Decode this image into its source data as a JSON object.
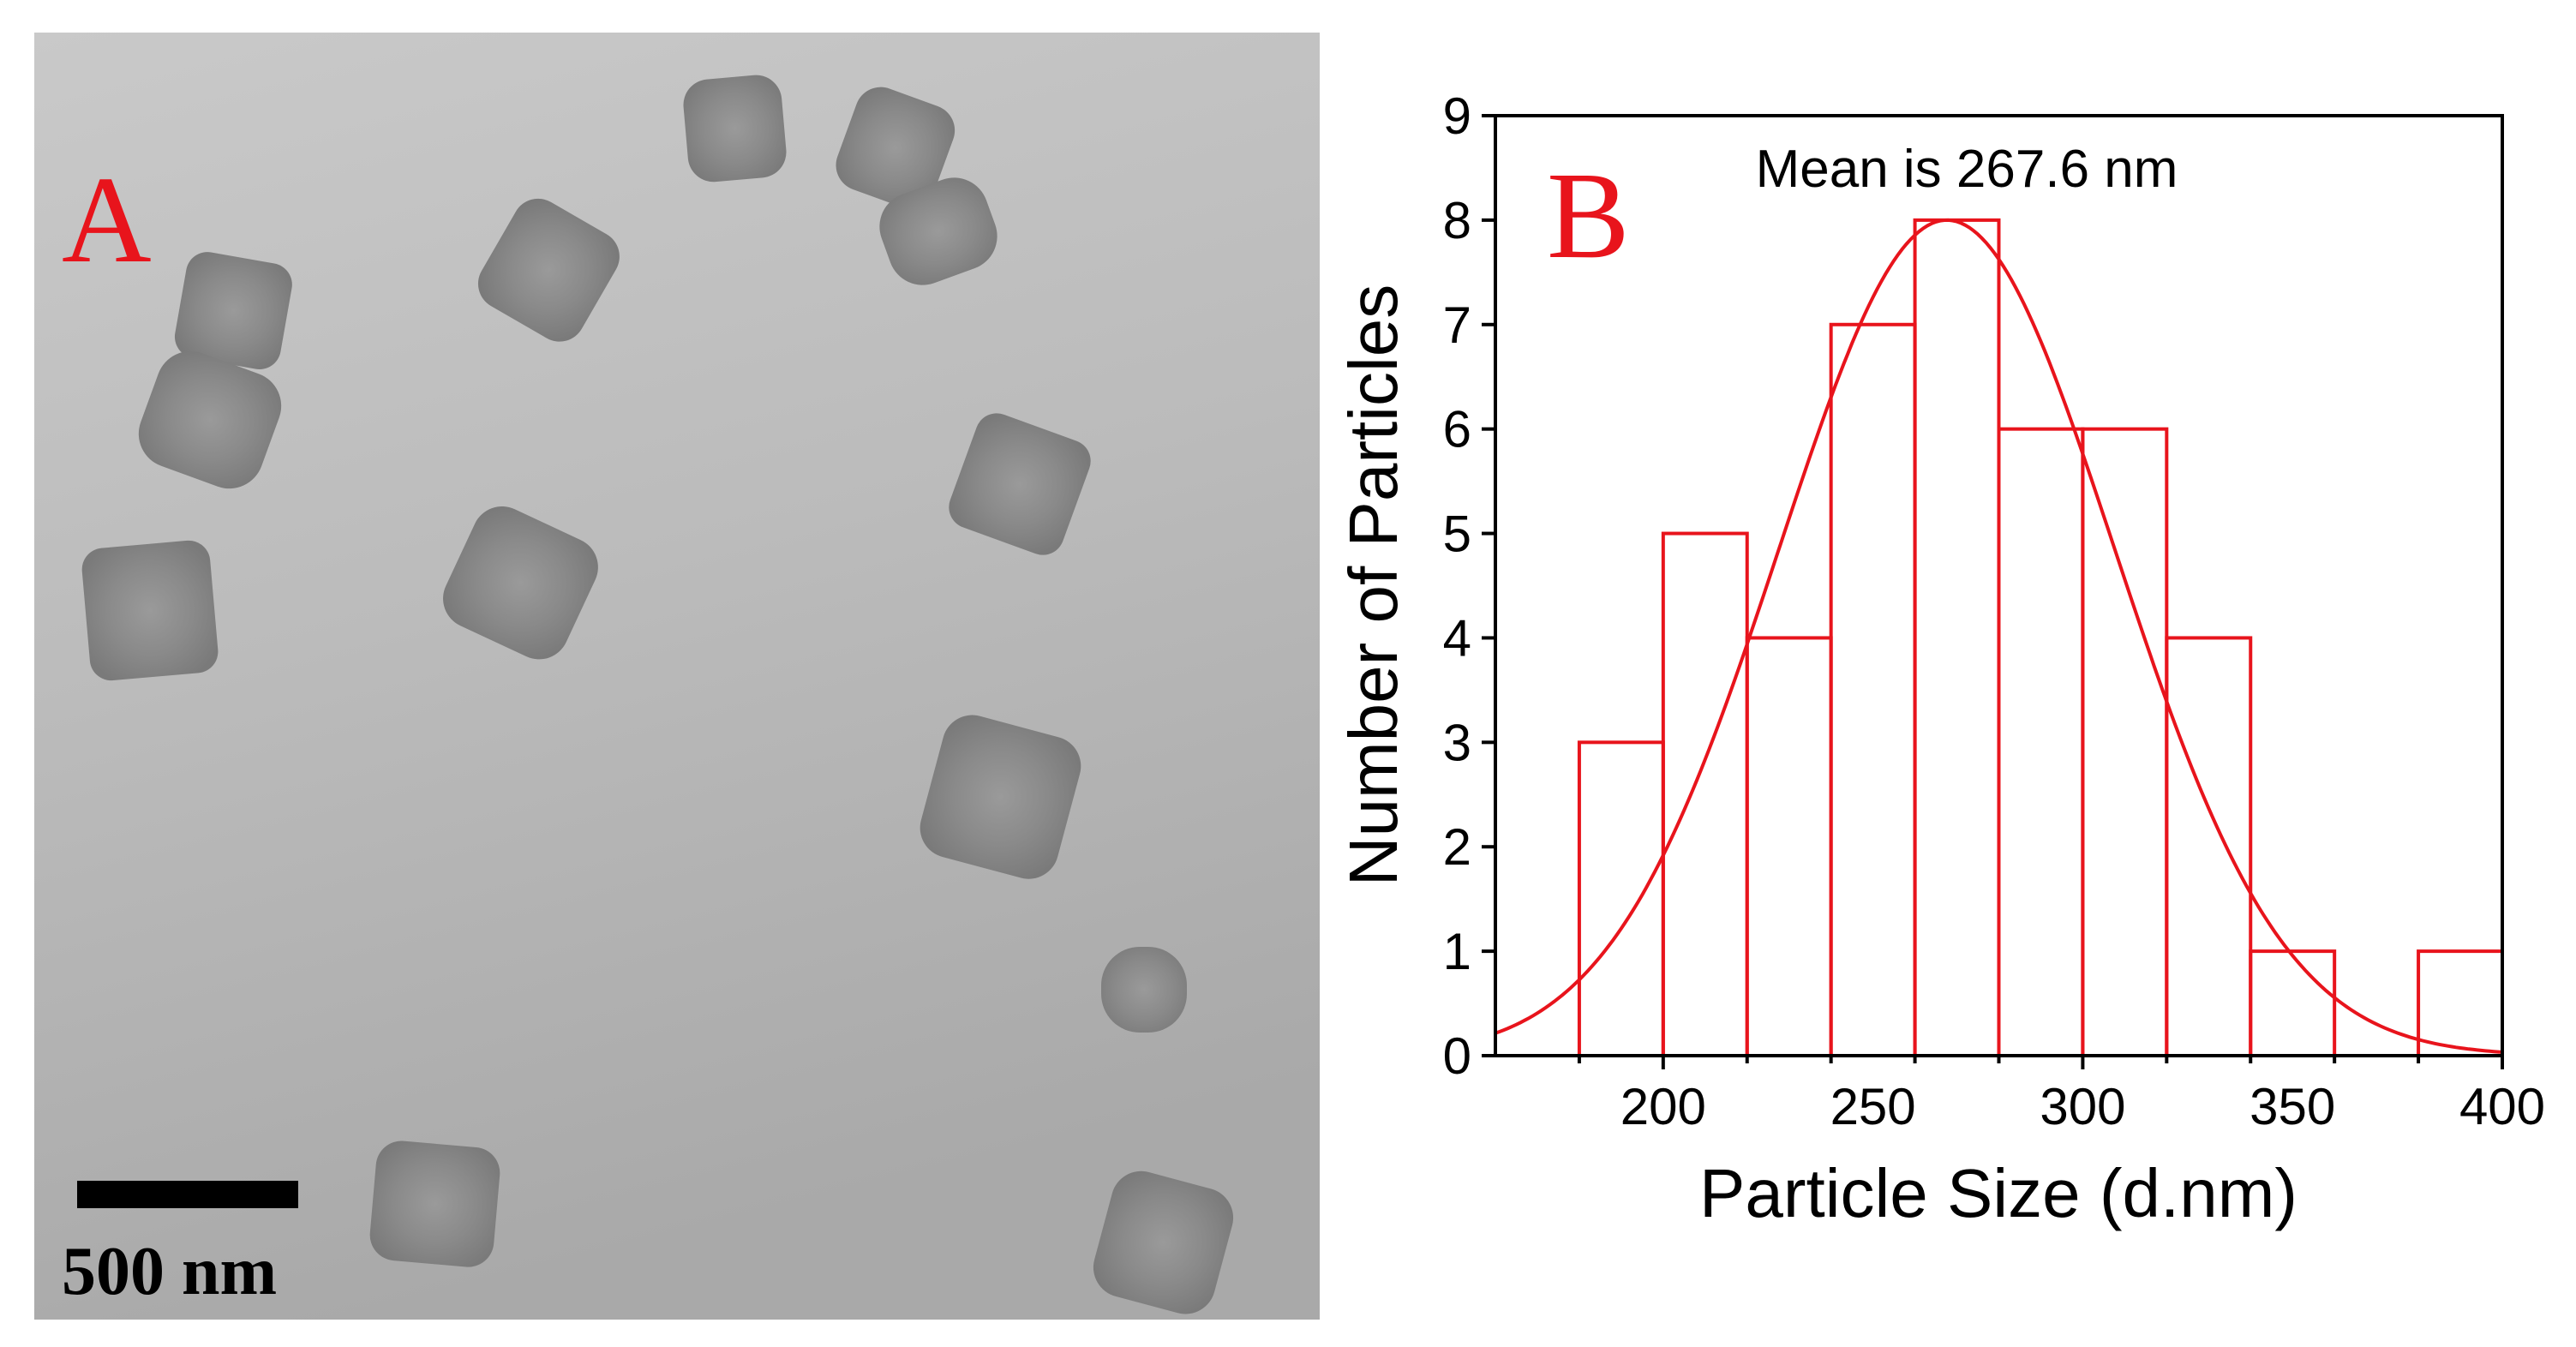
{
  "panel_a": {
    "label": "A",
    "scale_bar_label": "500 nm",
    "label_color": "#e8141c"
  },
  "panel_b": {
    "label": "B",
    "annotation": "Mean is 267.6 nm",
    "label_color": "#e8141c"
  },
  "chart_data": {
    "type": "bar",
    "subtype": "histogram",
    "title": "",
    "annotation": "Mean is 267.6 nm",
    "xlabel": "Particle Size (d.nm)",
    "ylabel": "Number of Particles",
    "xlim": [
      160,
      400
    ],
    "ylim": [
      0,
      9
    ],
    "xticks": [
      200,
      250,
      300,
      350,
      400
    ],
    "yticks": [
      0,
      1,
      2,
      3,
      4,
      5,
      6,
      7,
      8,
      9
    ],
    "bins": [
      {
        "start": 180,
        "end": 200,
        "count": 3
      },
      {
        "start": 200,
        "end": 220,
        "count": 5
      },
      {
        "start": 220,
        "end": 240,
        "count": 4
      },
      {
        "start": 240,
        "end": 260,
        "count": 7
      },
      {
        "start": 260,
        "end": 280,
        "count": 8
      },
      {
        "start": 280,
        "end": 300,
        "count": 6
      },
      {
        "start": 300,
        "end": 320,
        "count": 6
      },
      {
        "start": 320,
        "end": 340,
        "count": 4
      },
      {
        "start": 340,
        "end": 360,
        "count": 1
      },
      {
        "start": 360,
        "end": 380,
        "count": 0
      },
      {
        "start": 380,
        "end": 400,
        "count": 1
      }
    ],
    "fit": {
      "type": "gaussian",
      "mean": 267.6,
      "sigma": 40,
      "amplitude": 8
    },
    "colors": {
      "bars": "#e8141c",
      "fit": "#e8141c",
      "axes": "#000000"
    },
    "grid": false,
    "legend": "none"
  }
}
